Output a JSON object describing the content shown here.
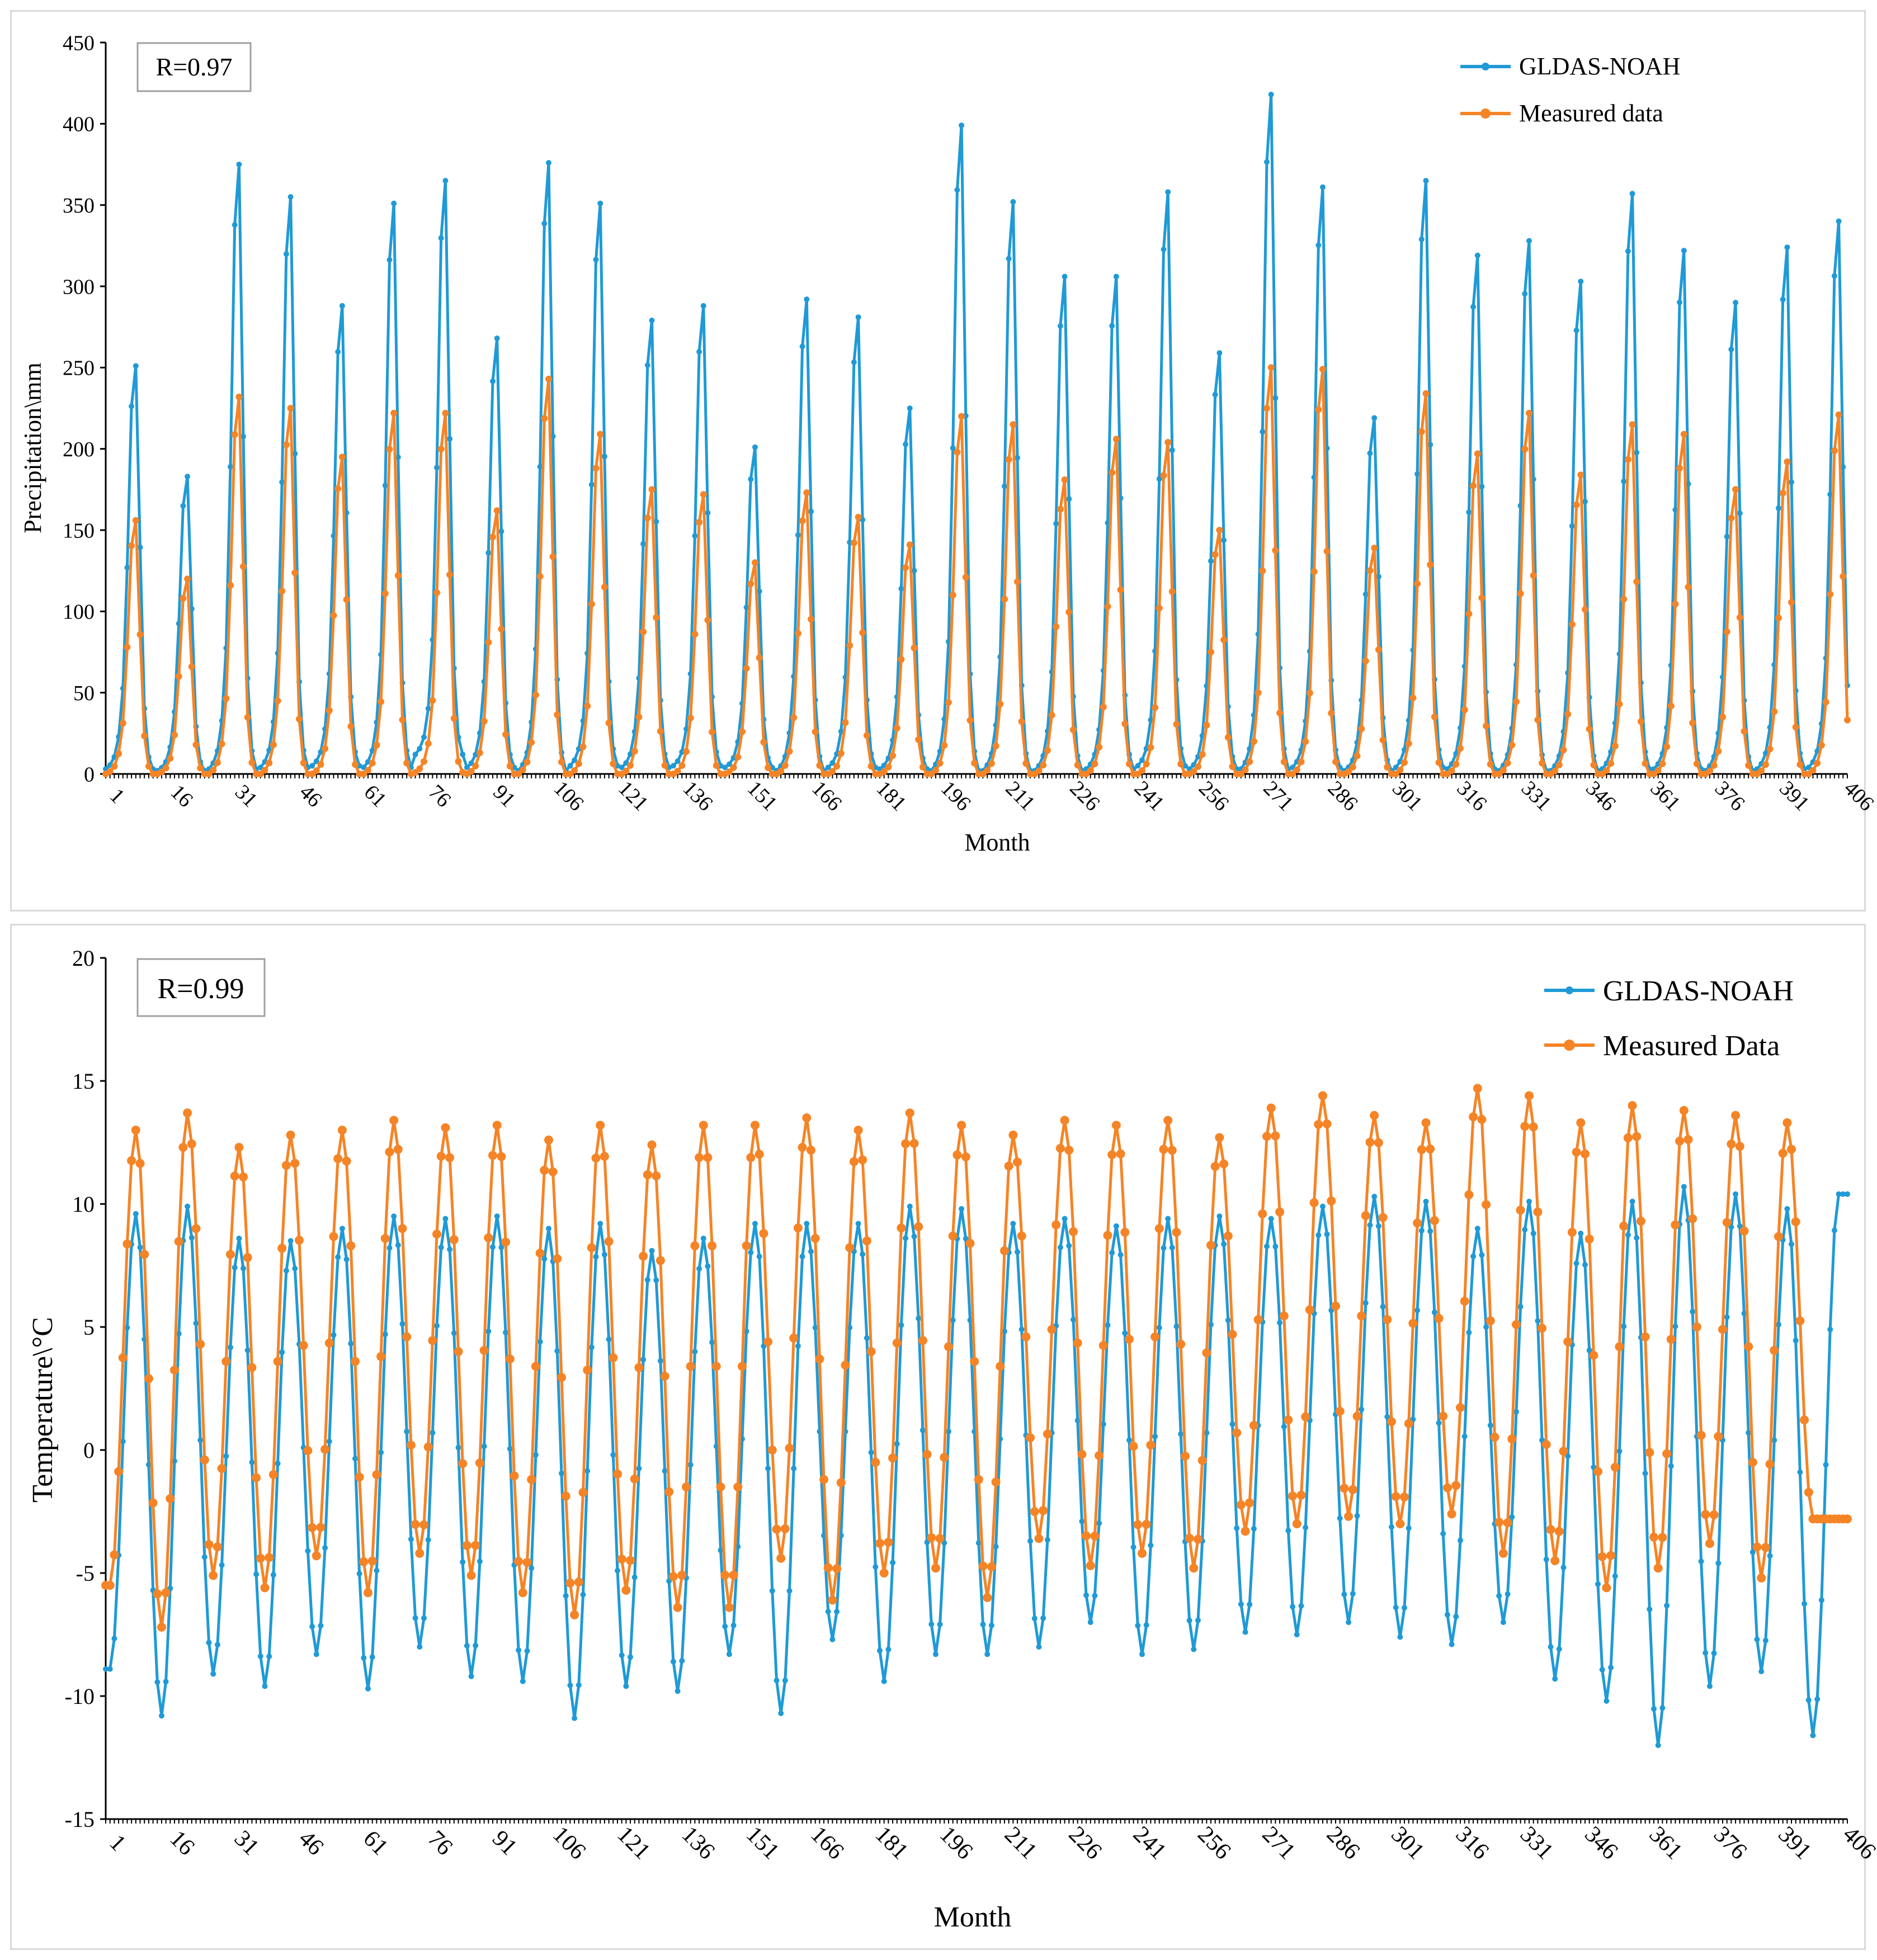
{
  "chart_data": [
    {
      "type": "line",
      "title": "",
      "xlabel": "Month",
      "ylabel": "Precipitation\\mm",
      "ylim": [
        0,
        450
      ],
      "yticks": [
        0,
        50,
        100,
        150,
        200,
        250,
        300,
        350,
        400,
        450
      ],
      "xlim": [
        1,
        406
      ],
      "xticks": [
        1,
        16,
        31,
        46,
        61,
        76,
        91,
        106,
        121,
        136,
        151,
        166,
        181,
        196,
        211,
        226,
        241,
        256,
        271,
        286,
        301,
        316,
        331,
        346,
        361,
        376,
        391,
        406
      ],
      "annotation": "R=0.97",
      "legend": "top-right",
      "colors": {
        "GLDAS-NOAH": "#1f9ad6",
        "Measured data": "#f58426"
      },
      "series": [
        {
          "name": "GLDAS-NOAH",
          "peaks": [
            251,
            183,
            375,
            355,
            288,
            351,
            365,
            268,
            376,
            351,
            279,
            288,
            201,
            292,
            281,
            225,
            399,
            352,
            306,
            306,
            358,
            259,
            418,
            361,
            219,
            365,
            319,
            328,
            303,
            357,
            322,
            290,
            324,
            340
          ],
          "troughs": [
            3,
            2,
            3,
            4,
            5,
            4,
            12,
            4,
            2,
            5,
            4,
            5,
            4,
            2,
            4,
            3,
            2,
            2,
            2,
            3,
            5,
            3,
            3,
            4,
            2,
            4,
            3,
            2,
            2,
            3,
            3,
            2,
            3,
            4
          ]
        },
        {
          "name": "Measured data",
          "peaks": [
            156,
            120,
            232,
            225,
            195,
            222,
            222,
            162,
            243,
            209,
            175,
            172,
            130,
            173,
            158,
            141,
            220,
            215,
            181,
            206,
            204,
            150,
            250,
            249,
            139,
            234,
            197,
            222,
            184,
            215,
            209,
            175,
            192,
            221
          ],
          "troughs": [
            0,
            0,
            0,
            0,
            0,
            0,
            1,
            0,
            0,
            0,
            0,
            0,
            0,
            0,
            0,
            0,
            0,
            0,
            0,
            0,
            0,
            0,
            0,
            0,
            0,
            0,
            0,
            0,
            0,
            0,
            0,
            0,
            0,
            0
          ]
        }
      ]
    },
    {
      "type": "line",
      "title": "",
      "xlabel": "Month",
      "ylabel": "Temperature\\°C",
      "ylim": [
        -15,
        20
      ],
      "yticks": [
        -15,
        -10,
        -5,
        0,
        5,
        10,
        15,
        20
      ],
      "xlim": [
        1,
        406
      ],
      "xticks": [
        1,
        16,
        31,
        46,
        61,
        76,
        91,
        106,
        121,
        136,
        151,
        166,
        181,
        196,
        211,
        226,
        241,
        256,
        271,
        286,
        301,
        316,
        331,
        346,
        361,
        376,
        391,
        406
      ],
      "annotation": "R=0.99",
      "legend": "top-right",
      "colors": {
        "GLDAS-NOAH": "#1f9ad6",
        "Measured Data": "#f58426"
      },
      "series": [
        {
          "name": "GLDAS-NOAH",
          "peaks": [
            9.6,
            9.9,
            8.6,
            8.5,
            9.0,
            9.5,
            9.4,
            9.5,
            9.0,
            9.2,
            8.1,
            8.6,
            9.2,
            9.2,
            9.2,
            9.9,
            9.8,
            9.2,
            9.4,
            9.1,
            9.4,
            9.5,
            9.4,
            9.9,
            10.3,
            10.1,
            9.0,
            10.1,
            8.8,
            10.1,
            10.7,
            10.4,
            9.8,
            10.4
          ],
          "troughs": [
            -8.9,
            -10.8,
            -9.1,
            -9.6,
            -8.3,
            -9.7,
            -8.0,
            -9.2,
            -9.4,
            -10.9,
            -9.6,
            -9.8,
            -8.3,
            -10.7,
            -7.7,
            -9.4,
            -8.3,
            -8.3,
            -8.0,
            -7.0,
            -8.3,
            -8.1,
            -7.4,
            -7.5,
            -7.0,
            -7.6,
            -7.9,
            -7.0,
            -9.3,
            -10.2,
            -12.0,
            -9.6,
            -9.0,
            -11.6
          ]
        },
        {
          "name": "Measured Data",
          "peaks": [
            13.0,
            13.7,
            12.3,
            12.8,
            13.0,
            13.4,
            13.1,
            13.2,
            12.6,
            13.2,
            12.4,
            13.2,
            13.2,
            13.5,
            13.0,
            13.7,
            13.2,
            12.8,
            13.4,
            13.2,
            13.4,
            12.7,
            13.9,
            14.4,
            13.6,
            13.3,
            14.7,
            14.4,
            13.3,
            14.0,
            13.8,
            13.6,
            13.3
          ],
          "troughs": [
            -5.5,
            -7.2,
            -5.1,
            -5.6,
            -4.3,
            -5.8,
            -4.2,
            -5.1,
            -5.8,
            -6.7,
            -5.7,
            -6.4,
            -6.4,
            -4.4,
            -6.1,
            -5.0,
            -4.8,
            -6.0,
            -3.6,
            -4.7,
            -4.2,
            -4.8,
            -3.3,
            -3.0,
            -2.7,
            -3.0,
            -2.6,
            -4.2,
            -4.5,
            -5.6,
            -4.8,
            -3.8,
            -5.2,
            -2.8
          ]
        }
      ]
    }
  ]
}
